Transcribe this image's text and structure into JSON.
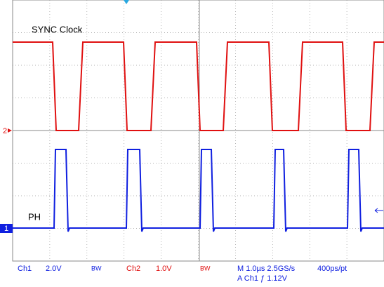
{
  "traces": {
    "ch2_label": "SYNC Clock",
    "ch1_label": "PH",
    "ch2_marker": "2",
    "ch1_marker": "1"
  },
  "status_bar": {
    "ch1": "Ch1",
    "ch1_scale": "2.0V",
    "ch1_bw": "BW",
    "ch2": "Ch2",
    "ch2_scale": "1.0V",
    "ch2_bw": "BW",
    "timebase": "M 1.0µs 2.5GS/s",
    "resolution": "400ps/pt",
    "trigger": "A Ch1 ƒ 1.12V"
  }
}
